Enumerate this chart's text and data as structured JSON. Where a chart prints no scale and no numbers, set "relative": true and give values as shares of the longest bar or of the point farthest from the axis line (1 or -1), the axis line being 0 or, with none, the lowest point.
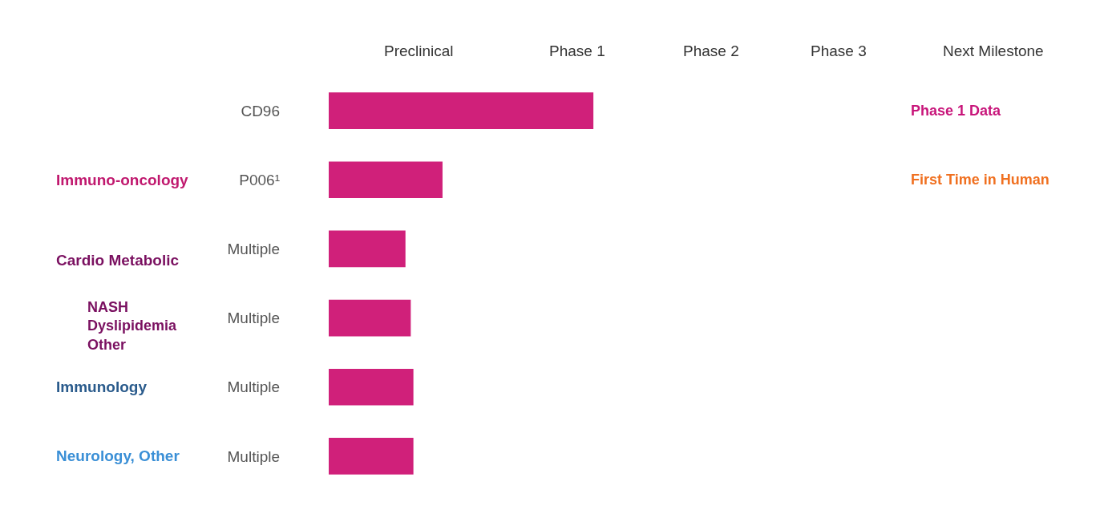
{
  "chart_data": {
    "type": "bar",
    "orientation": "horizontal",
    "relative": true,
    "color": "#d0207a",
    "legend": false,
    "categories": [
      "CD96",
      "P006¹",
      "Multiple",
      "Multiple",
      "Multiple",
      "Multiple"
    ],
    "values": [
      1,
      0.43,
      0.29,
      0.31,
      0.32,
      0.32
    ],
    "annotations": [
      "Preclinical",
      "Phase 1",
      "Phase 2",
      "Phase 3",
      "Next Milestone",
      "Immuno-oncology",
      "Cardio Metabolic",
      "NASH\nDyslipidemia\nOther",
      "Immunology",
      "Neurology, Other",
      "Phase 1 Data",
      "First Time in Human"
    ]
  }
}
